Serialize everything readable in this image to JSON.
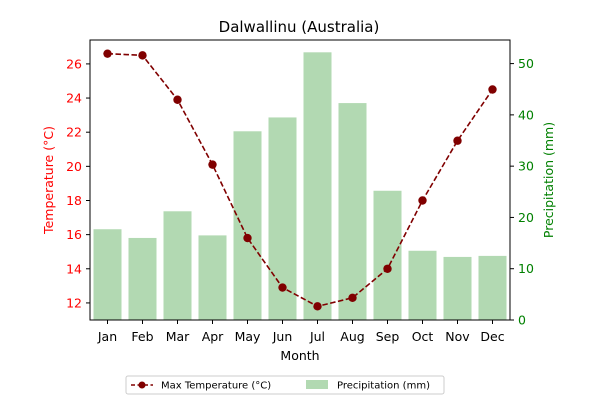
{
  "chart_data": {
    "type": "bar+line",
    "title": "Dalwallinu (Australia)",
    "xlabel": "Month",
    "categories": [
      "Jan",
      "Feb",
      "Mar",
      "Apr",
      "May",
      "Jun",
      "Jul",
      "Aug",
      "Sep",
      "Oct",
      "Nov",
      "Dec"
    ],
    "left_axis": {
      "label": "Temperature (°C)",
      "color": "#ff0000",
      "ylim": [
        11.0,
        27.4
      ],
      "ticks": [
        12,
        14,
        16,
        18,
        20,
        22,
        24,
        26
      ]
    },
    "right_axis": {
      "label": "Precipitation (mm)",
      "color": "#008000",
      "ylim": [
        0,
        54.6
      ],
      "ticks": [
        0,
        10,
        20,
        30,
        40,
        50
      ]
    },
    "series": [
      {
        "name": "Max Temperature (°C)",
        "kind": "line",
        "axis": "left",
        "color": "#800000",
        "style": "dashed",
        "marker": "circle",
        "values": [
          26.6,
          26.5,
          23.9,
          20.1,
          15.8,
          12.9,
          11.8,
          12.3,
          14.0,
          18.0,
          21.5,
          24.5
        ]
      },
      {
        "name": "Precipitation (mm)",
        "kind": "bar",
        "axis": "right",
        "color": "#b2d9b2",
        "values": [
          17.7,
          16.0,
          21.2,
          16.5,
          36.8,
          39.5,
          52.2,
          42.3,
          25.2,
          13.5,
          12.3,
          12.5
        ]
      }
    ],
    "legend": {
      "placement": "bottom-center",
      "entries": [
        "Max Temperature (°C)",
        "Precipitation (mm)"
      ]
    },
    "grid": false
  }
}
